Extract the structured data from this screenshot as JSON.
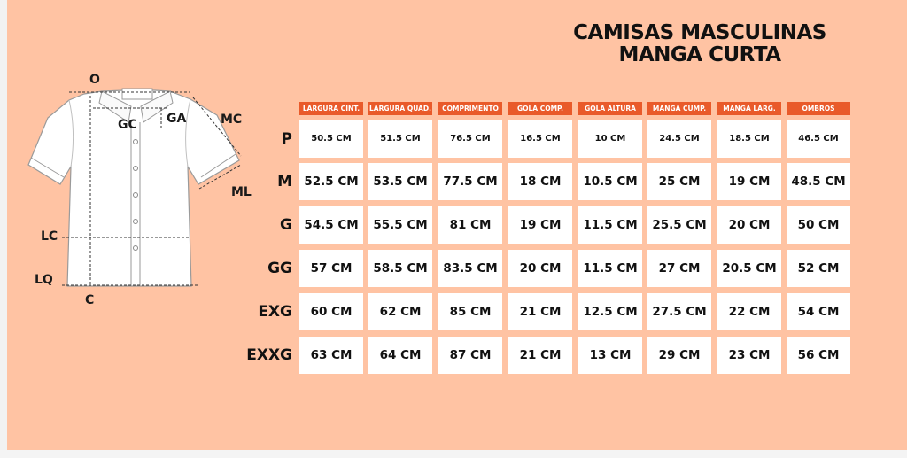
{
  "title": {
    "line1": "CAMISAS MASCULINAS",
    "line2": "MANGA CURTA"
  },
  "diagram_labels": {
    "o": "O",
    "gc": "GC",
    "ga": "GA",
    "mc": "MC",
    "ml": "ML",
    "lc": "LC",
    "lq": "LQ",
    "c": "C"
  },
  "columns": [
    "LARGURA CINT.",
    "LARGURA QUAD.",
    "COMPRIMENTO",
    "GOLA COMP.",
    "GOLA ALTURA",
    "MANGA CUMP.",
    "MANGA LARG.",
    "OMBROS"
  ],
  "rows": [
    {
      "size": "P",
      "values": [
        "50.5 CM",
        "51.5 CM",
        "76.5 CM",
        "16.5 CM",
        "10 CM",
        "24.5 CM",
        "18.5 CM",
        "46.5 CM"
      ]
    },
    {
      "size": "M",
      "values": [
        "52.5 CM",
        "53.5 CM",
        "77.5 CM",
        "18 CM",
        "10.5 CM",
        "25 CM",
        "19 CM",
        "48.5 CM"
      ]
    },
    {
      "size": "G",
      "values": [
        "54.5 CM",
        "55.5 CM",
        "81 CM",
        "19 CM",
        "11.5 CM",
        "25.5 CM",
        "20 CM",
        "50 CM"
      ]
    },
    {
      "size": "GG",
      "values": [
        "57 CM",
        "58.5 CM",
        "83.5 CM",
        "20 CM",
        "11.5 CM",
        "27 CM",
        "20.5 CM",
        "52 CM"
      ]
    },
    {
      "size": "EXG",
      "values": [
        "60 CM",
        "62 CM",
        "85 CM",
        "21 CM",
        "12.5 CM",
        "27.5 CM",
        "22 CM",
        "54 CM"
      ]
    },
    {
      "size": "EXXG",
      "values": [
        "63 CM",
        "64 CM",
        "87 CM",
        "21 CM",
        "13 CM",
        "29 CM",
        "23 CM",
        "56 CM"
      ]
    }
  ],
  "colors": {
    "background": "#ffc3a3",
    "header": "#e95a2a",
    "cell": "#ffffff"
  }
}
